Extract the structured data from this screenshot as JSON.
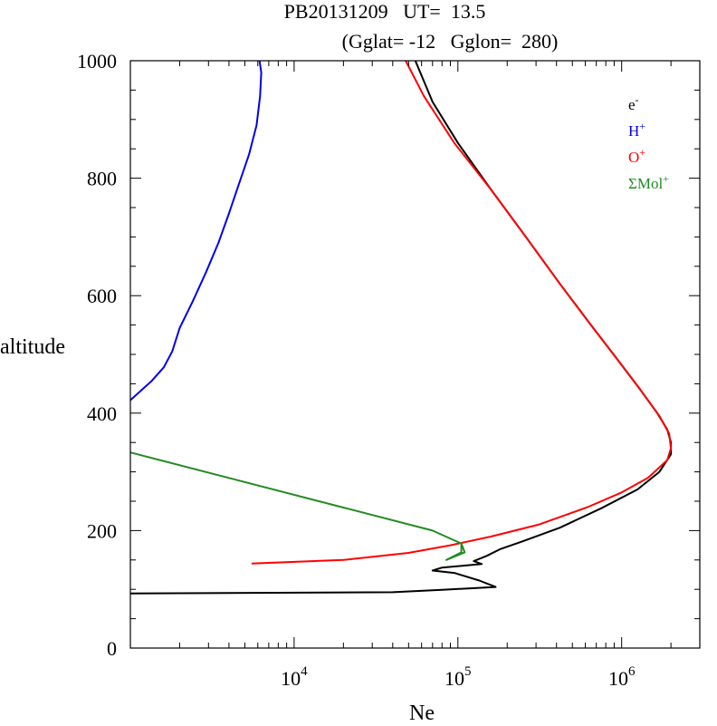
{
  "chart_data": {
    "type": "line",
    "title_line1": "PB20131209   UT=  13.5",
    "title_line2": "(Gglat= -12   Gglon=  280)",
    "xlabel": "Ne",
    "ylabel": "altitude",
    "x_scale": "log",
    "xlim": [
      1000,
      3000000
    ],
    "ylim": [
      0,
      1000
    ],
    "x_major_ticks": [
      {
        "value": 10000,
        "base": "10",
        "exp": "4"
      },
      {
        "value": 100000,
        "base": "10",
        "exp": "5"
      },
      {
        "value": 1000000,
        "base": "10",
        "exp": "6"
      }
    ],
    "y_ticks": [
      0,
      200,
      400,
      600,
      800,
      1000
    ],
    "y_minor_step": 50,
    "legend_position": "top-right",
    "series": [
      {
        "name": "e",
        "sup": "-",
        "color": "#000000",
        "points": [
          [
            1000,
            93
          ],
          [
            40000,
            95
          ],
          [
            80000,
            99
          ],
          [
            170000,
            104
          ],
          [
            135000,
            115
          ],
          [
            95000,
            128
          ],
          [
            70000,
            132
          ],
          [
            80000,
            137
          ],
          [
            140000,
            143
          ],
          [
            125000,
            148
          ],
          [
            150000,
            157
          ],
          [
            180000,
            168
          ],
          [
            250000,
            182
          ],
          [
            420000,
            205
          ],
          [
            750000,
            238
          ],
          [
            1250000,
            270
          ],
          [
            1700000,
            300
          ],
          [
            2000000,
            330
          ],
          [
            2000000,
            350
          ],
          [
            1900000,
            372
          ],
          [
            1650000,
            400
          ],
          [
            1300000,
            440
          ],
          [
            950000,
            490
          ],
          [
            650000,
            550
          ],
          [
            420000,
            620
          ],
          [
            260000,
            700
          ],
          [
            160000,
            780
          ],
          [
            100000,
            860
          ],
          [
            70000,
            930
          ],
          [
            55000,
            1000
          ]
        ]
      },
      {
        "name": "H",
        "sup": "+",
        "color": "#0000ee",
        "points": [
          [
            1000,
            422
          ],
          [
            1350,
            455
          ],
          [
            1600,
            478
          ],
          [
            1800,
            505
          ],
          [
            2000,
            545
          ],
          [
            2400,
            590
          ],
          [
            2900,
            640
          ],
          [
            3450,
            690
          ],
          [
            4000,
            740
          ],
          [
            4600,
            790
          ],
          [
            5300,
            840
          ],
          [
            5900,
            890
          ],
          [
            6200,
            940
          ],
          [
            6300,
            980
          ],
          [
            6150,
            1000
          ]
        ]
      },
      {
        "name": "O",
        "sup": "+",
        "color": "#ff0000",
        "points": [
          [
            5500,
            144
          ],
          [
            20000,
            150
          ],
          [
            50000,
            162
          ],
          [
            90000,
            175
          ],
          [
            160000,
            190
          ],
          [
            310000,
            210
          ],
          [
            620000,
            240
          ],
          [
            1000000,
            265
          ],
          [
            1450000,
            290
          ],
          [
            1900000,
            320
          ],
          [
            2000000,
            340
          ],
          [
            1950000,
            365
          ],
          [
            1700000,
            395
          ],
          [
            1300000,
            440
          ],
          [
            950000,
            490
          ],
          [
            650000,
            550
          ],
          [
            420000,
            620
          ],
          [
            260000,
            700
          ],
          [
            160000,
            780
          ],
          [
            95000,
            860
          ],
          [
            62000,
            940
          ],
          [
            48000,
            1000
          ]
        ]
      },
      {
        "name": "ΣMol",
        "sup": "+",
        "color": "#228b22",
        "points": [
          [
            1000,
            333
          ],
          [
            70000,
            200
          ],
          [
            105000,
            178
          ],
          [
            110000,
            163
          ],
          [
            85000,
            150
          ],
          [
            105000,
            163
          ],
          [
            105000,
            178
          ]
        ]
      }
    ]
  }
}
